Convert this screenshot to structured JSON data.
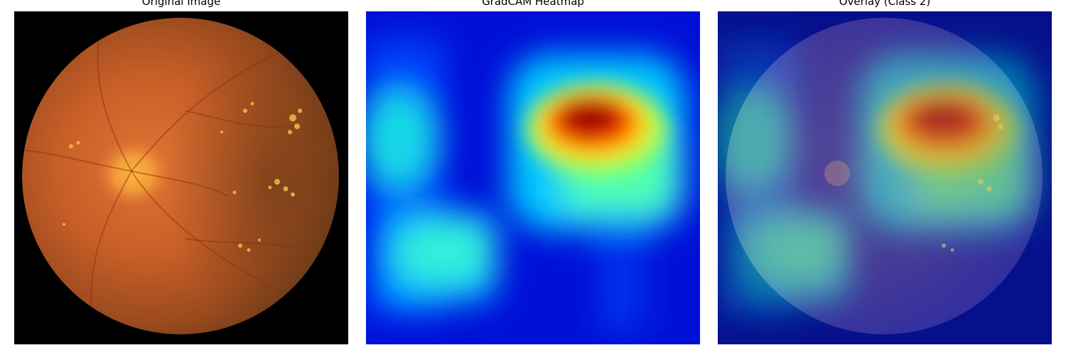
{
  "panels": [
    {
      "title": "Original Image"
    },
    {
      "title": "GradCAM Heatmap"
    },
    {
      "title": "Overlay (Class 2)"
    }
  ],
  "colors": {
    "background": "#ffffff",
    "fundus_dark": "#000000",
    "fundus_orange": "#d0652a",
    "heat_low": "#0010d8",
    "heat_high": "#8c0000"
  },
  "icons": {
    "panel1": "retina-fundus-photo",
    "panel2": "gradcam-heatmap",
    "panel3": "heatmap-overlay"
  }
}
